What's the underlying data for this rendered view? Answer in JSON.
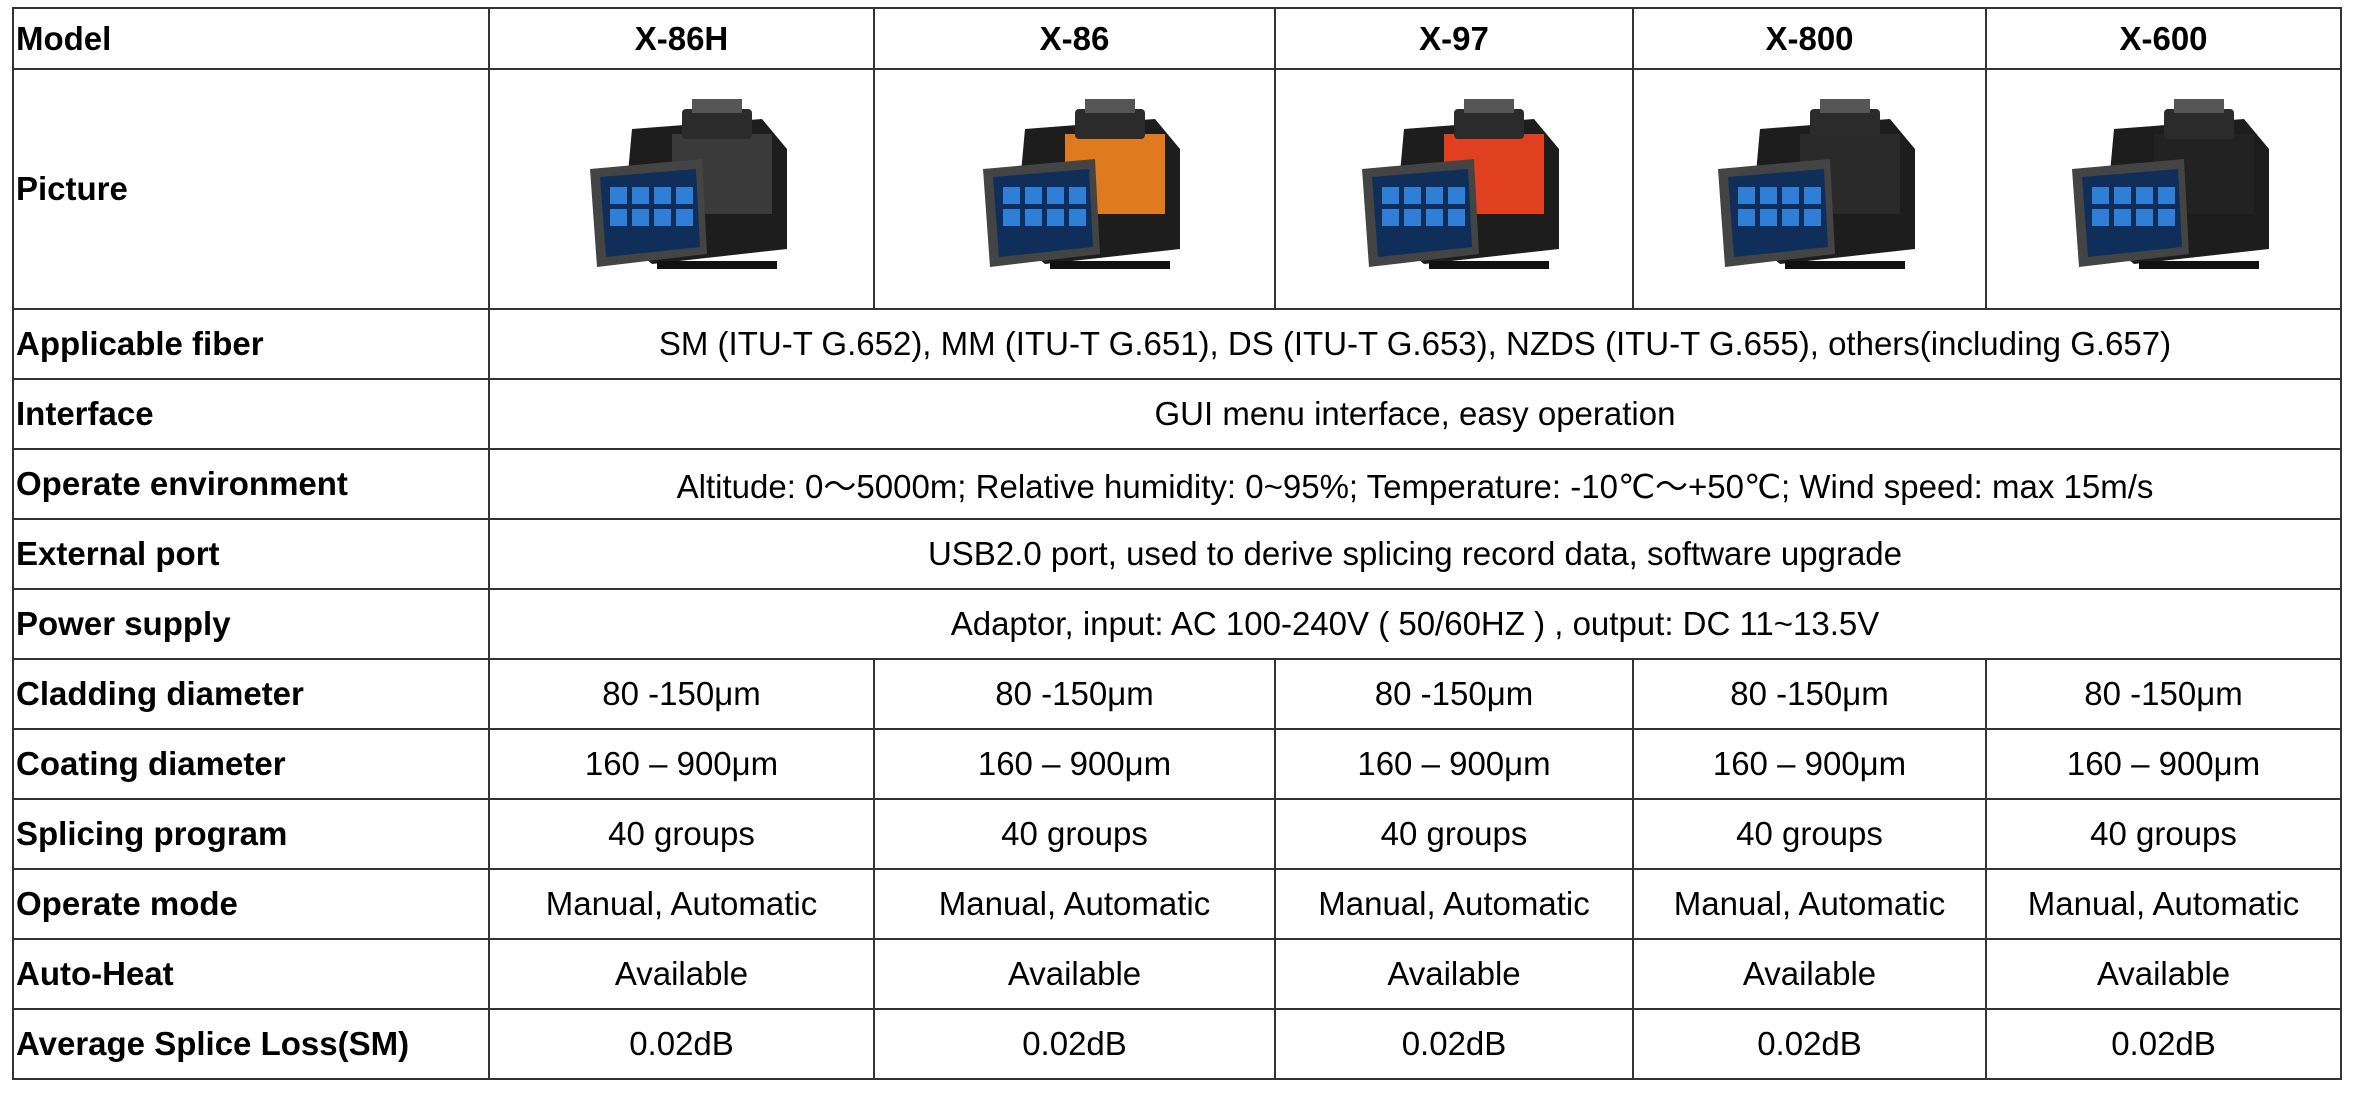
{
  "table": {
    "header": [
      "Model",
      "X-86H",
      "X-86",
      "X-97",
      "X-800",
      "X-600"
    ],
    "picture_label": "Picture",
    "rows": [
      {
        "label": "Applicable fiber",
        "span": "SM (ITU-T G.652), MM (ITU-T G.651), DS (ITU-T G.653), NZDS (ITU-T G.655), others(including G.657)"
      },
      {
        "label": "Interface",
        "span": "GUI menu interface, easy operation"
      },
      {
        "label": "Operate environment",
        "span": "Altitude: 0～5000m; Relative humidity: 0~95%; Temperature: -10℃～+50℃; Wind speed: max 15m/s"
      },
      {
        "label": "External port",
        "span": "USB2.0 port, used to derive splicing record data, software upgrade"
      },
      {
        "label": "Power supply",
        "span": "Adaptor, input: AC 100-240V ( 50/60HZ ) , output: DC 11~13.5V"
      },
      {
        "label": "Cladding diameter",
        "cells": [
          "80 -150μm",
          "80 -150μm",
          "80 -150μm",
          "80 -150μm",
          "80 -150μm"
        ]
      },
      {
        "label": "Coating diameter",
        "cells": [
          "160 – 900μm",
          "160 – 900μm",
          "160 – 900μm",
          "160 – 900μm",
          "160 – 900μm"
        ]
      },
      {
        "label": "Splicing program",
        "cells": [
          "40 groups",
          "40 groups",
          "40 groups",
          "40 groups",
          "40 groups"
        ]
      },
      {
        "label": "Operate mode",
        "cells": [
          "Manual, Automatic",
          "Manual, Automatic",
          "Manual, Automatic",
          "Manual, Automatic",
          "Manual, Automatic"
        ]
      },
      {
        "label": "Auto-Heat",
        "cells": [
          "Available",
          "Available",
          "Available",
          "Available",
          "Available"
        ]
      },
      {
        "label": "Average Splice Loss(SM)",
        "cells": [
          "0.02dB",
          "0.02dB",
          "0.02dB",
          "0.02dB",
          "0.02dB"
        ]
      }
    ]
  }
}
